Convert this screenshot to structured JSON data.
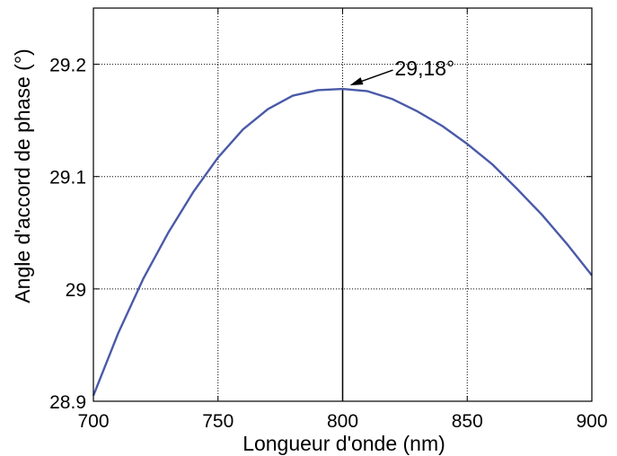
{
  "chart_data": {
    "type": "line",
    "title": "",
    "xlabel": "Longueur d'onde (nm)",
    "ylabel": "Angle d'accord de phase (°)",
    "xlim": [
      700,
      900
    ],
    "ylim": [
      28.9,
      29.25
    ],
    "x_ticks": [
      700,
      750,
      800,
      850,
      900
    ],
    "x_tick_labels": [
      "700",
      "750",
      "800",
      "850",
      "900"
    ],
    "y_ticks": [
      28.9,
      29.0,
      29.1,
      29.2
    ],
    "y_tick_labels": [
      "28.9",
      "29",
      "29.1",
      "29.2"
    ],
    "grid": true,
    "series_color": "#4a5aa8",
    "series": [
      {
        "x": [
          700,
          710,
          720,
          730,
          740,
          750,
          760,
          770,
          780,
          790,
          800,
          810,
          820,
          830,
          840,
          850,
          860,
          870,
          880,
          890,
          900
        ],
        "y": [
          28.905,
          28.961,
          29.009,
          29.05,
          29.086,
          29.117,
          29.142,
          29.16,
          29.172,
          29.177,
          29.178,
          29.176,
          29.169,
          29.158,
          29.145,
          29.129,
          29.111,
          29.089,
          29.066,
          29.04,
          29.012
        ]
      }
    ],
    "annotations": [
      {
        "text": "29,18°",
        "x": 800,
        "y": 29.178
      }
    ]
  }
}
